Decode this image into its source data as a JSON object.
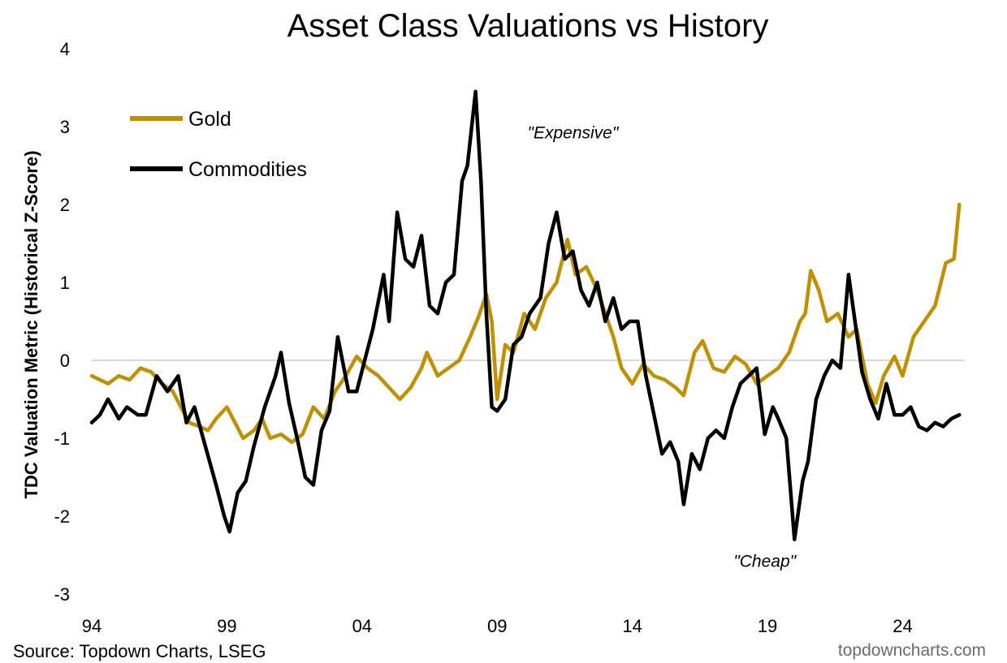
{
  "chart_data": {
    "type": "line",
    "title": "Asset Class Valuations vs History",
    "ylabel": "TDC Valuation Metric (Historical Z-Score)",
    "xlabel": "",
    "ylim": [
      -3,
      4
    ],
    "xlim": [
      1994,
      2026.3
    ],
    "y_ticks": [
      4,
      3,
      2,
      1,
      0,
      -1,
      -2,
      -3
    ],
    "y_tick_labels": [
      "4",
      "3",
      "2",
      "1",
      "0",
      "-1",
      "-2",
      "-3"
    ],
    "x_ticks": [
      1994,
      1999,
      2004,
      2009,
      2014,
      2019,
      2024
    ],
    "x_tick_labels": [
      "94",
      "99",
      "04",
      "09",
      "14",
      "19",
      "24"
    ],
    "zero_line": true,
    "grid": false,
    "legend_position": "top-left",
    "annotations": [
      {
        "text": "\"Expensive\"",
        "x": 2011.8,
        "y": 2.85
      },
      {
        "text": "\"Cheap\"",
        "x": 2018.9,
        "y": -2.65
      }
    ],
    "series": [
      {
        "name": "Gold",
        "color": "#bf9000",
        "x": [
          1994.0,
          1994.3,
          1994.6,
          1995.0,
          1995.4,
          1995.8,
          1996.2,
          1996.6,
          1997.0,
          1997.3,
          1997.6,
          1998.0,
          1998.3,
          1998.6,
          1999.0,
          1999.3,
          1999.6,
          2000.0,
          2000.3,
          2000.6,
          2001.0,
          2001.4,
          2001.8,
          2002.2,
          2002.6,
          2003.0,
          2003.4,
          2003.8,
          2004.2,
          2004.6,
          2005.0,
          2005.4,
          2005.8,
          2006.2,
          2006.4,
          2006.8,
          2007.2,
          2007.6,
          2008.0,
          2008.3,
          2008.6,
          2008.8,
          2009.0,
          2009.3,
          2009.6,
          2010.0,
          2010.4,
          2010.8,
          2011.2,
          2011.6,
          2011.9,
          2012.3,
          2012.7,
          2013.0,
          2013.3,
          2013.6,
          2014.0,
          2014.4,
          2014.8,
          2015.2,
          2015.6,
          2015.9,
          2016.3,
          2016.6,
          2017.0,
          2017.4,
          2017.8,
          2018.2,
          2018.6,
          2019.0,
          2019.4,
          2019.8,
          2020.2,
          2020.4,
          2020.6,
          2020.9,
          2021.2,
          2021.6,
          2022.0,
          2022.3,
          2022.7,
          2023.0,
          2023.3,
          2023.7,
          2024.0,
          2024.4,
          2024.8,
          2025.2,
          2025.6,
          2025.9,
          2026.1
        ],
        "values": [
          -0.2,
          -0.25,
          -0.3,
          -0.2,
          -0.25,
          -0.1,
          -0.15,
          -0.3,
          -0.4,
          -0.6,
          -0.8,
          -0.85,
          -0.9,
          -0.75,
          -0.6,
          -0.8,
          -1.0,
          -0.9,
          -0.75,
          -1.0,
          -0.95,
          -1.05,
          -0.95,
          -0.6,
          -0.75,
          -0.4,
          -0.2,
          0.05,
          -0.1,
          -0.2,
          -0.35,
          -0.5,
          -0.35,
          -0.1,
          0.1,
          -0.2,
          -0.1,
          0.0,
          0.3,
          0.55,
          0.85,
          0.5,
          -0.5,
          0.2,
          0.1,
          0.6,
          0.4,
          0.8,
          1.0,
          1.55,
          1.1,
          1.2,
          0.9,
          0.6,
          0.3,
          -0.1,
          -0.3,
          -0.05,
          -0.2,
          -0.25,
          -0.35,
          -0.45,
          0.1,
          0.25,
          -0.1,
          -0.15,
          0.05,
          -0.05,
          -0.3,
          -0.2,
          -0.1,
          0.1,
          0.5,
          0.6,
          1.15,
          0.9,
          0.5,
          0.6,
          0.3,
          0.4,
          -0.3,
          -0.55,
          -0.2,
          0.05,
          -0.2,
          0.3,
          0.5,
          0.7,
          1.25,
          1.3,
          2.0
        ]
      },
      {
        "name": "Commodities",
        "color": "#000000",
        "x": [
          1994.0,
          1994.3,
          1994.6,
          1995.0,
          1995.3,
          1995.7,
          1996.0,
          1996.4,
          1996.8,
          1997.2,
          1997.5,
          1997.8,
          1998.2,
          1998.6,
          1998.9,
          1999.1,
          1999.4,
          1999.7,
          2000.0,
          2000.4,
          2000.8,
          2001.0,
          2001.3,
          2001.6,
          2001.9,
          2002.2,
          2002.5,
          2002.8,
          2003.1,
          2003.5,
          2003.8,
          2004.1,
          2004.4,
          2004.8,
          2005.0,
          2005.3,
          2005.6,
          2005.9,
          2006.2,
          2006.5,
          2006.8,
          2007.1,
          2007.4,
          2007.7,
          2007.9,
          2008.2,
          2008.4,
          2008.6,
          2008.8,
          2009.0,
          2009.3,
          2009.6,
          2009.9,
          2010.2,
          2010.6,
          2010.9,
          2011.2,
          2011.5,
          2011.8,
          2012.1,
          2012.4,
          2012.7,
          2013.0,
          2013.3,
          2013.6,
          2013.9,
          2014.2,
          2014.5,
          2014.8,
          2015.1,
          2015.4,
          2015.7,
          2015.9,
          2016.2,
          2016.5,
          2016.8,
          2017.1,
          2017.4,
          2017.7,
          2018.0,
          2018.3,
          2018.6,
          2018.9,
          2019.2,
          2019.4,
          2019.7,
          2020.0,
          2020.3,
          2020.5,
          2020.8,
          2021.1,
          2021.4,
          2021.7,
          2022.0,
          2022.2,
          2022.5,
          2022.8,
          2023.1,
          2023.4,
          2023.7,
          2024.0,
          2024.3,
          2024.6,
          2024.9,
          2025.2,
          2025.5,
          2025.8,
          2026.1
        ],
        "values": [
          -0.8,
          -0.7,
          -0.5,
          -0.75,
          -0.6,
          -0.7,
          -0.7,
          -0.2,
          -0.4,
          -0.2,
          -0.8,
          -0.6,
          -1.1,
          -1.6,
          -2.0,
          -2.2,
          -1.7,
          -1.55,
          -1.1,
          -0.6,
          -0.2,
          0.1,
          -0.55,
          -1.0,
          -1.5,
          -1.6,
          -0.9,
          -0.65,
          0.3,
          -0.4,
          -0.4,
          0.0,
          0.4,
          1.1,
          0.5,
          1.9,
          1.3,
          1.2,
          1.6,
          0.7,
          0.6,
          1.0,
          1.1,
          2.3,
          2.5,
          3.45,
          2.3,
          0.6,
          -0.6,
          -0.65,
          -0.5,
          0.2,
          0.3,
          0.6,
          0.8,
          1.5,
          1.9,
          1.3,
          1.4,
          0.9,
          0.7,
          1.0,
          0.5,
          0.8,
          0.4,
          0.5,
          0.5,
          -0.2,
          -0.7,
          -1.2,
          -1.05,
          -1.3,
          -1.85,
          -1.2,
          -1.4,
          -1.0,
          -0.9,
          -1.0,
          -0.6,
          -0.3,
          -0.2,
          -0.1,
          -0.95,
          -0.6,
          -0.75,
          -1.0,
          -2.3,
          -1.55,
          -1.3,
          -0.5,
          -0.2,
          0.0,
          -0.1,
          1.1,
          0.6,
          -0.15,
          -0.5,
          -0.75,
          -0.3,
          -0.7,
          -0.7,
          -0.6,
          -0.85,
          -0.9,
          -0.8,
          -0.85,
          -0.75,
          -0.7
        ]
      }
    ]
  },
  "source_text": "Source: Topdown Charts, LSEG",
  "watermark": "topdowncharts.com"
}
